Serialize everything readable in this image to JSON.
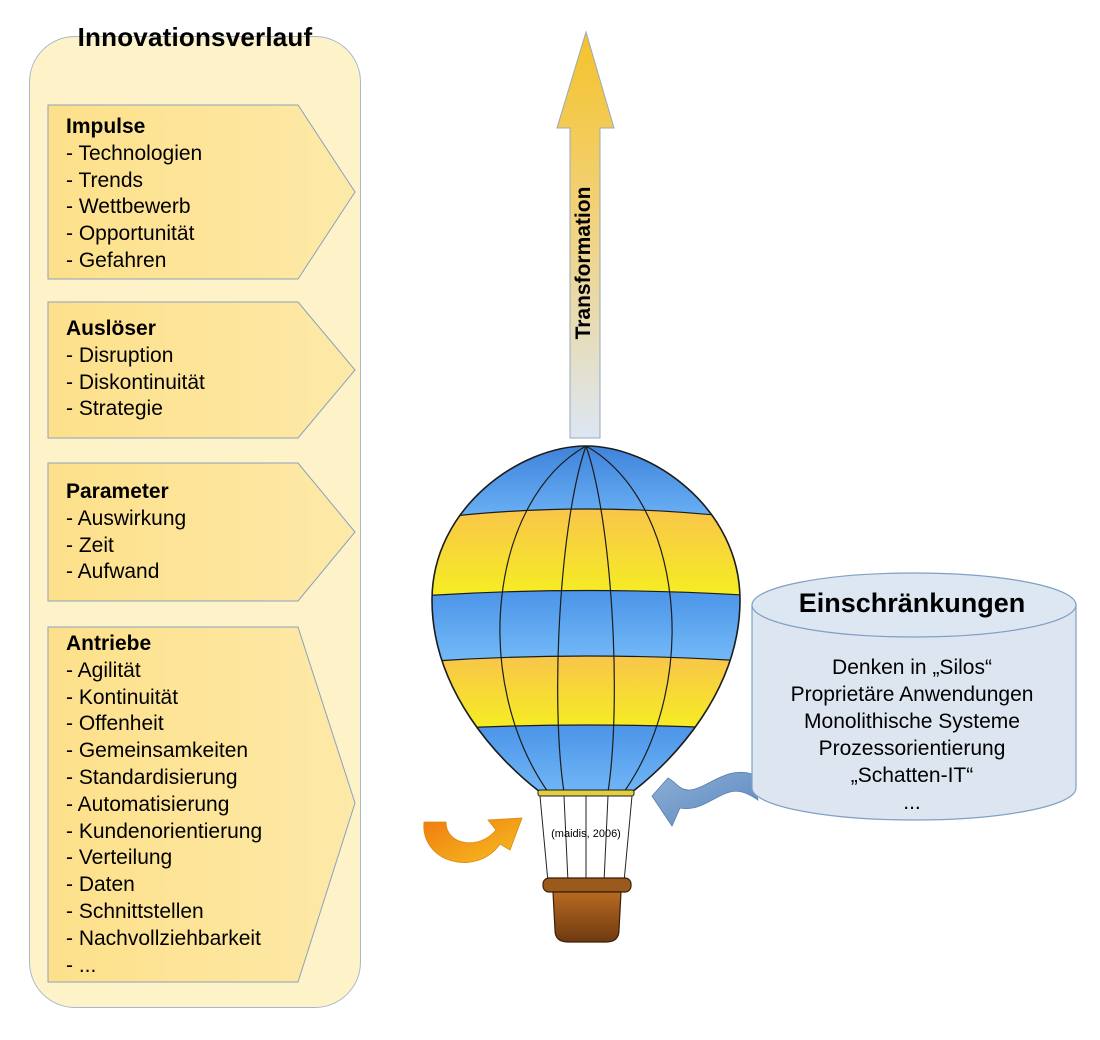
{
  "panel": {
    "title": "Innovationsverlauf",
    "groups": [
      {
        "title": "Impulse",
        "items": [
          "- Technologien",
          "- Trends",
          "- Wettbewerb",
          "- Opportunität",
          "- Gefahren"
        ]
      },
      {
        "title": "Auslöser",
        "items": [
          "- Disruption",
          "- Diskontinuität",
          "- Strategie"
        ]
      },
      {
        "title": "Parameter",
        "items": [
          "- Auswirkung",
          "- Zeit",
          "- Aufwand"
        ]
      },
      {
        "title": "Antriebe",
        "items": [
          "- Agilität",
          "- Kontinuität",
          "- Offenheit",
          "- Gemeinsamkeiten",
          "- Standardisierung",
          "- Automatisierung",
          "- Kundenorientierung",
          "- Verteilung",
          "- Daten",
          "- Schnittstellen",
          "- Nachvollziehbarkeit",
          "- ..."
        ]
      }
    ]
  },
  "arrow": {
    "label": "Transformation"
  },
  "constraints": {
    "title": "Einschränkungen",
    "items": [
      "Denken in „Silos“",
      "Proprietäre Anwendungen",
      "Monolithische Systeme",
      "Prozessorientierung",
      "„Schatten-IT“",
      "..."
    ]
  },
  "balloon": {
    "citation": "(maidis, 2006)"
  },
  "colors": {
    "panel_bg": "#fdf2c8",
    "chevron_fill": "#fde59a",
    "balloon_blue": "#5aa2ee",
    "balloon_yellow": "#f8e02a",
    "basket": "#8a4a14",
    "cylinder": "#dde6f0",
    "arrow_top": "#f4c430",
    "arrow_bottom": "#dbe6f4"
  }
}
